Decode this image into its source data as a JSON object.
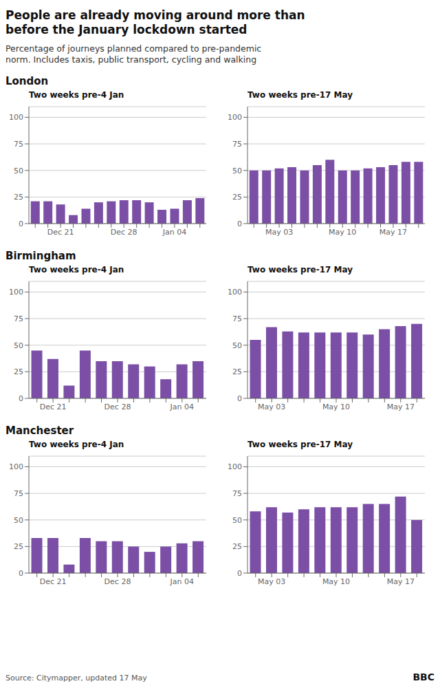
{
  "title": "People are already moving around more than\nbefore the January lockdown started",
  "subtitle": "Percentage of journeys planned compared to pre-pandemic\nnorm. Includes taxis, public transport, cycling and walking",
  "annotations": [
    "Source: Citymapper, updated 17 May",
    "BBC"
  ],
  "chart_data": [
    {
      "type": "bar",
      "subtitle": "London",
      "title": "Two weeks pre-4 Jan",
      "categories": [
        null,
        null,
        "Dec 21",
        null,
        null,
        null,
        null,
        "Dec 28",
        null,
        null,
        null,
        "Jan 04",
        null,
        null
      ],
      "values": [
        21,
        21,
        18,
        8,
        14,
        20,
        21,
        22,
        22,
        20,
        13,
        14,
        22,
        24
      ],
      "color": "#7b4fa6",
      "ylim": [
        0,
        110
      ],
      "yticks": [
        0,
        25,
        50,
        75,
        100
      ],
      "grid": true
    },
    {
      "type": "bar",
      "title": "Two weeks pre-17 May",
      "categories": [
        null,
        null,
        "May 03",
        null,
        null,
        null,
        null,
        "May 10",
        null,
        null,
        null,
        "May 17",
        null,
        null
      ],
      "values": [
        50,
        50,
        52,
        53,
        50,
        55,
        60,
        50,
        50,
        52,
        53,
        55,
        58,
        58
      ],
      "color": "#7b4fa6",
      "ylim": [
        0,
        110
      ],
      "yticks": [
        0,
        25,
        50,
        75,
        100
      ],
      "grid": true
    },
    {
      "type": "bar",
      "subtitle": "Birmingham",
      "title": "Two weeks pre-4 Jan",
      "categories": [
        null,
        "Dec 21",
        null,
        null,
        null,
        "Dec 28",
        null,
        null,
        null,
        "Jan 04",
        null
      ],
      "values": [
        45,
        37,
        12,
        45,
        35,
        35,
        32,
        30,
        18,
        32,
        35
      ],
      "color": "#7b4fa6",
      "ylim": [
        0,
        110
      ],
      "yticks": [
        0,
        25,
        50,
        75,
        100
      ],
      "grid": true
    },
    {
      "type": "bar",
      "title": "Two weeks pre-17 May",
      "categories": [
        null,
        "May 03",
        null,
        null,
        null,
        "May 10",
        null,
        null,
        null,
        "May 17",
        null
      ],
      "values": [
        55,
        67,
        63,
        62,
        62,
        62,
        62,
        60,
        65,
        68,
        70
      ],
      "color": "#7b4fa6",
      "ylim": [
        0,
        110
      ],
      "yticks": [
        0,
        25,
        50,
        75,
        100
      ],
      "grid": true
    },
    {
      "type": "bar",
      "subtitle": "Manchester",
      "title": "Two weeks pre-4 Jan",
      "categories": [
        null,
        "Dec 21",
        null,
        null,
        null,
        "Dec 28",
        null,
        null,
        null,
        "Jan 04",
        null
      ],
      "values": [
        33,
        33,
        8,
        33,
        30,
        30,
        25,
        20,
        25,
        28,
        30
      ],
      "color": "#7b4fa6",
      "ylim": [
        0,
        110
      ],
      "yticks": [
        0,
        25,
        50,
        75,
        100
      ],
      "grid": true
    },
    {
      "type": "bar",
      "title": "Two weeks pre-17 May",
      "categories": [
        null,
        "May 03",
        null,
        null,
        null,
        "May 10",
        null,
        null,
        null,
        "May 17",
        null
      ],
      "values": [
        58,
        62,
        57,
        60,
        62,
        62,
        62,
        65,
        65,
        72,
        50
      ],
      "color": "#7b4fa6",
      "ylim": [
        0,
        110
      ],
      "yticks": [
        0,
        25,
        50,
        75,
        100
      ],
      "grid": true
    }
  ]
}
